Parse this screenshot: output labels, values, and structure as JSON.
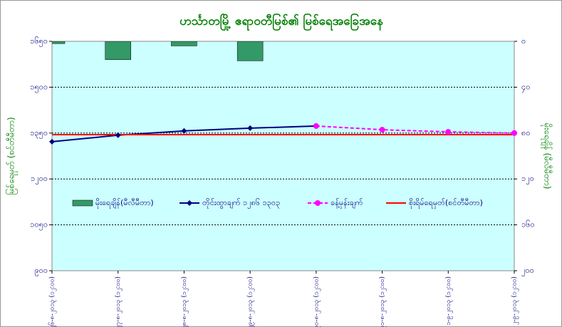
{
  "chart_data": {
    "type": "line",
    "title": "ဟင်္သာတမြို့ ဧရာဝတီမြစ်၏ မြစ်ရေအခြေအနေ",
    "ylabel": "မြစ်ရေမှတ် (စင်တီမီတာ)",
    "y2label": "မိုးရေချိန် (မီလီမီတာ)",
    "categories": [
      "၂၆-၈-၂၀၁၃ (၁၂:၀၀)",
      "၂၇-၈-၂၀၁၃ (၁၂:၀၀)",
      "၂၈-၈-၂၀၁၃ (၁၂:၀၀)",
      "၂၉-၈-၂၀၁၃ (၁၂:၀၀)",
      "၃၀-၈-၂၀၁၃ (၁၂:၀၀)",
      "၃၁-၈-၂၀၁၃ (၁၂:၀၀)",
      "၁-၉-၂၀၁၃ (၁၂:၀၀)",
      "၂-၉-၂၀၁၃ (၁၂:၀၀)"
    ],
    "ylim": [
      900,
      1650
    ],
    "yticks": [
      {
        "value": 900,
        "label": "၉၀၀"
      },
      {
        "value": 1050,
        "label": "၁၀၅၀"
      },
      {
        "value": 1200,
        "label": "၁၂၀၀"
      },
      {
        "value": 1350,
        "label": "၁၃၅၀"
      },
      {
        "value": 1500,
        "label": "၁၅၀၀"
      },
      {
        "value": 1650,
        "label": "၁၆၅၀"
      }
    ],
    "y2lim": [
      200,
      0
    ],
    "y2ticks": [
      {
        "value": 0,
        "label": "၀"
      },
      {
        "value": 40,
        "label": "၄၀"
      },
      {
        "value": 80,
        "label": "၈၀"
      },
      {
        "value": 120,
        "label": "၁၂၀"
      },
      {
        "value": 160,
        "label": "၁၆၀"
      },
      {
        "value": 200,
        "label": "၂၀၀"
      }
    ],
    "grid": true,
    "series": [
      {
        "name": "မိုးရေချိန်(မီလီမီတာ)",
        "type": "bar",
        "axis": "y2",
        "color": "#339966",
        "values": [
          2,
          16,
          4,
          17,
          null,
          null,
          null,
          null
        ]
      },
      {
        "name": "တိုင်းထွာချက် ၁၂၈၆ ၁၃၀၃",
        "type": "line",
        "color": "#000080",
        "marker": "diamond",
        "values": [
          1322,
          1343,
          1357,
          1366,
          1373,
          null,
          null,
          null
        ]
      },
      {
        "name": "ခန့်မှန်းချက်",
        "type": "line",
        "color": "#ff00ff",
        "marker": "circle",
        "dashed": true,
        "values": [
          null,
          null,
          null,
          null,
          1373,
          1361,
          1354,
          1350
        ]
      },
      {
        "name": "စိုးရိမ်ရေမှတ်(စင်တီမီတာ)",
        "type": "line",
        "color": "#ff0000",
        "values": [
          1345,
          1345,
          1345,
          1345,
          1345,
          1345,
          1345,
          1345
        ]
      }
    ]
  }
}
